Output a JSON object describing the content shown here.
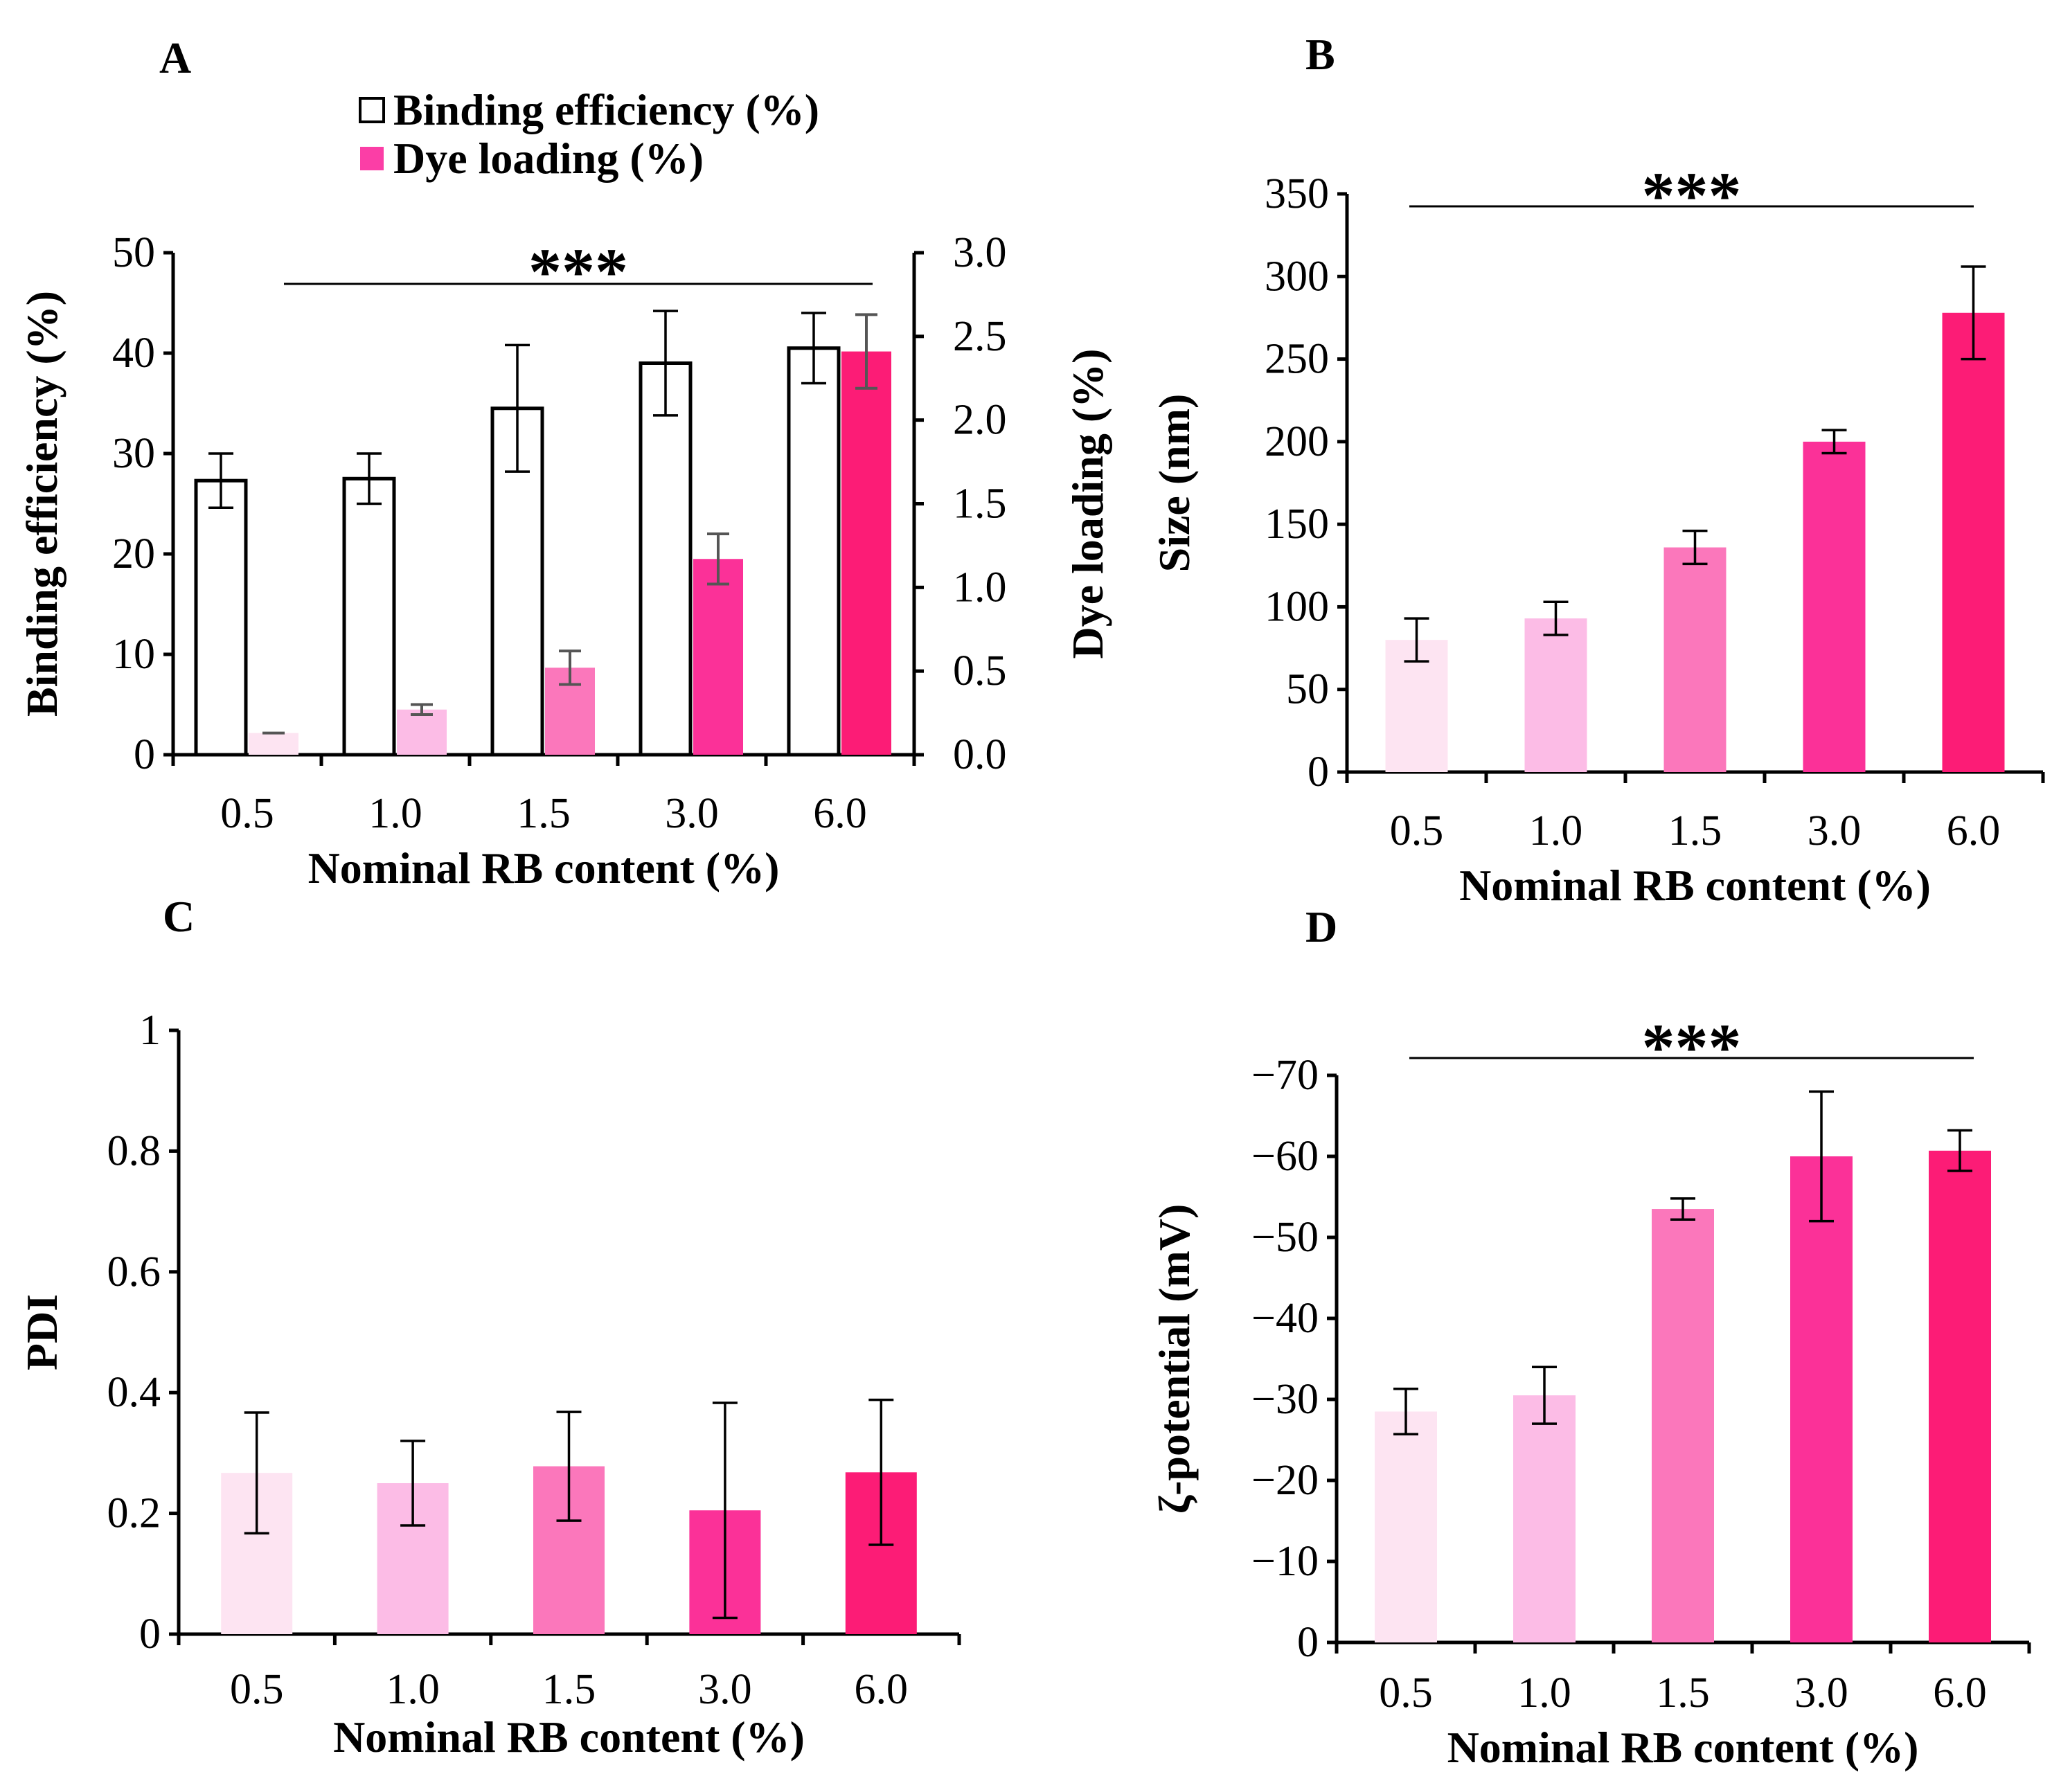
{
  "chart_data": [
    {
      "id": "A",
      "type": "bar",
      "panel_label": "A",
      "categories": [
        "0.5",
        "1.0",
        "1.5",
        "3.0",
        "6.0"
      ],
      "xlabel": "Nominal RB content (%)",
      "ylabel": "Binding efficiency (%)",
      "ylim": [
        0,
        50
      ],
      "yticks": [
        "0",
        "10",
        "20",
        "30",
        "40",
        "50"
      ],
      "y2label": "Dye loading (%)",
      "y2lim": [
        0,
        3.0
      ],
      "y2ticks": [
        "0.0",
        "0.5",
        "1.0",
        "1.5",
        "2.0",
        "2.5",
        "3.0"
      ],
      "series": [
        {
          "name": "Binding efficiency (%)",
          "axis": "left",
          "color": "#ffffff",
          "edge": "#000000",
          "values": [
            27.3,
            27.5,
            34.5,
            39.0,
            40.5
          ],
          "errors": [
            2.7,
            2.5,
            6.3,
            5.2,
            3.5
          ]
        },
        {
          "name": "Dye loading (%)",
          "axis": "right",
          "colors": [
            "#fde4f2",
            "#fcbce6",
            "#fb77bb",
            "#fb3198",
            "#fc1c76"
          ],
          "values": [
            0.13,
            0.27,
            0.52,
            1.17,
            2.41
          ],
          "errors": [
            0.0,
            0.03,
            0.1,
            0.15,
            0.22
          ]
        }
      ],
      "legend": {
        "position": "top",
        "entries": [
          {
            "label": "Binding efficiency (%)",
            "color": "#ffffff"
          },
          {
            "label": "Dye loading (%)",
            "color": "#fb3ea6"
          }
        ]
      },
      "significance": "***"
    },
    {
      "id": "B",
      "type": "bar",
      "panel_label": "B",
      "categories": [
        "0.5",
        "1.0",
        "1.5",
        "3.0",
        "6.0"
      ],
      "xlabel": "Nominal RB content (%)",
      "ylabel": "Size (nm)",
      "ylim": [
        0,
        350
      ],
      "yticks": [
        "0",
        "50",
        "100",
        "150",
        "200",
        "250",
        "300",
        "350"
      ],
      "colors": [
        "#fde4f2",
        "#fcbce6",
        "#fb77bb",
        "#fb3198",
        "#fc1c76"
      ],
      "values": [
        80,
        93,
        136,
        200,
        278
      ],
      "errors": [
        13,
        10,
        10,
        7,
        28
      ],
      "significance": "***"
    },
    {
      "id": "C",
      "type": "bar",
      "panel_label": "C",
      "categories": [
        "0.5",
        "1.0",
        "1.5",
        "3.0",
        "6.0"
      ],
      "xlabel": "Nominal RB content (%)",
      "ylabel": "PDI",
      "ylim": [
        0,
        1
      ],
      "yticks": [
        "0",
        "0.2",
        "0.4",
        "0.6",
        "0.8",
        "1"
      ],
      "colors": [
        "#fde4f2",
        "#fcbce6",
        "#fb77bb",
        "#fb3198",
        "#fc1c76"
      ],
      "values": [
        0.267,
        0.25,
        0.278,
        0.205,
        0.268
      ],
      "errors": [
        0.1,
        0.07,
        0.09,
        0.178,
        0.12
      ]
    },
    {
      "id": "D",
      "type": "bar",
      "panel_label": "D",
      "categories": [
        "0.5",
        "1.0",
        "1.5",
        "3.0",
        "6.0"
      ],
      "xlabel": "Nominal RB content (%)",
      "ylabel": "ζ-potential (mV)",
      "ylim": [
        0,
        -70
      ],
      "yticks": [
        "0",
        "−10",
        "−20",
        "−30",
        "−40",
        "−50",
        "−60",
        "−70"
      ],
      "colors": [
        "#fde4f2",
        "#fcbce6",
        "#fb77bb",
        "#fb3198",
        "#fc1c76"
      ],
      "values": [
        -28.5,
        -30.5,
        -53.5,
        -60,
        -60.7
      ],
      "errors": [
        2.8,
        3.5,
        1.3,
        8,
        2.5
      ],
      "significance": "***"
    }
  ]
}
